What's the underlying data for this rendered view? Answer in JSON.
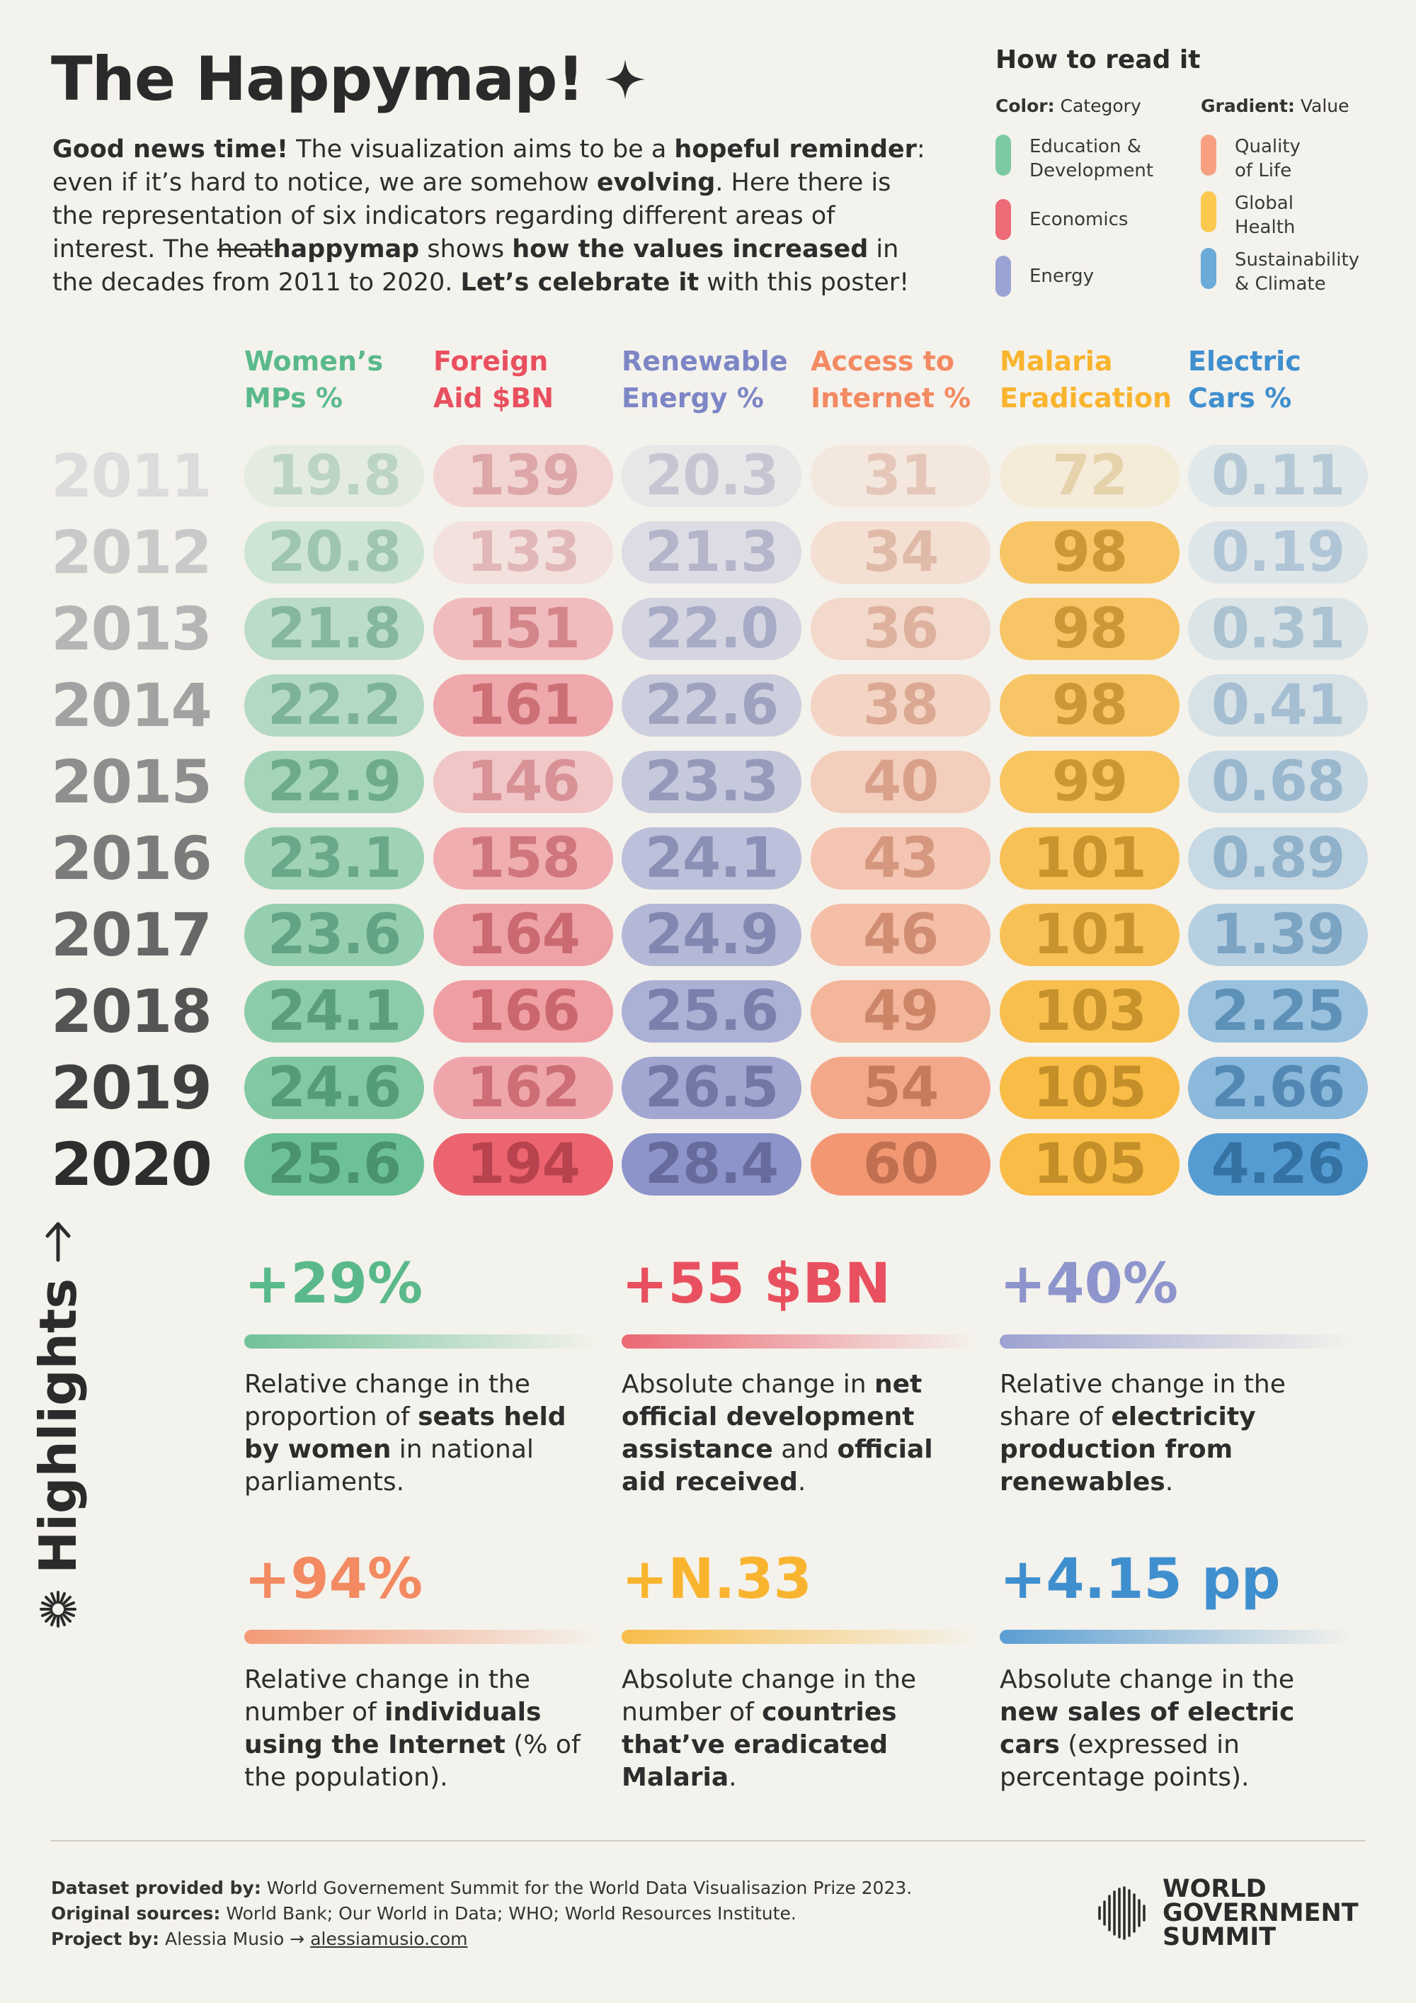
{
  "title": "The Happymap!",
  "intro": {
    "p1": "Good news time!",
    "p2": " The visualization aims to be a ",
    "p3": "hopeful reminder",
    "p4": ": even if it’s hard to notice, we are somehow ",
    "p5": "evolving",
    "p6": ". Here there is the representation of six indicators regarding different areas of interest. The ",
    "p7": "heat",
    "p8": "happymap",
    "p9": " shows ",
    "p10": "how the values increased",
    "p11": " in the decades from 2011 to 2020. ",
    "p12": "Let’s celebrate it",
    "p13": " with this poster!"
  },
  "legend": {
    "title": "How to read it",
    "color_label": "Color:",
    "color_value": " Category",
    "gradient_label": "Gradient:",
    "gradient_value": " Value",
    "categories_left": [
      {
        "label1": "Education &",
        "label2": "Development",
        "color": "#7ccaa3"
      },
      {
        "label1": "Economics",
        "label2": "",
        "color": "#ec6b77"
      },
      {
        "label1": "Energy",
        "label2": "",
        "color": "#9aa3d4"
      }
    ],
    "categories_right": [
      {
        "label1": "Quality",
        "label2": "of Life",
        "color": "#f6a081"
      },
      {
        "label1": "Global",
        "label2": "Health",
        "color": "#fbc94f"
      },
      {
        "label1": "Sustainability",
        "label2": "& Climate",
        "color": "#6aabd9"
      }
    ]
  },
  "chart_data": {
    "type": "heatmap",
    "rows": [
      "2011",
      "2012",
      "2013",
      "2014",
      "2015",
      "2016",
      "2017",
      "2018",
      "2019",
      "2020"
    ],
    "columns": [
      {
        "line1": "Women’s",
        "line2": "MPs %",
        "color": "#5ab98a",
        "values": [
          "19.8",
          "20.8",
          "21.8",
          "22.2",
          "22.9",
          "23.1",
          "23.6",
          "24.1",
          "24.6",
          "25.6"
        ]
      },
      {
        "line1": "Foreign",
        "line2": "Aid $BN",
        "color": "#e9505f",
        "values": [
          "139",
          "133",
          "151",
          "161",
          "146",
          "158",
          "164",
          "166",
          "162",
          "194"
        ]
      },
      {
        "line1": "Renewable",
        "line2": "Energy %",
        "color": "#7d86c5",
        "values": [
          "20.3",
          "21.3",
          "22.0",
          "22.6",
          "23.3",
          "24.1",
          "24.9",
          "25.6",
          "26.5",
          "28.4"
        ]
      },
      {
        "line1": "Access to",
        "line2": "Internet %",
        "color": "#f38a62",
        "values": [
          "31",
          "34",
          "36",
          "38",
          "40",
          "43",
          "46",
          "49",
          "54",
          "60"
        ]
      },
      {
        "line1": "Malaria",
        "line2": "Eradication",
        "color": "#f9b42f",
        "values": [
          "72",
          "98",
          "98",
          "98",
          "99",
          "101",
          "101",
          "103",
          "105",
          "105"
        ]
      },
      {
        "line1": "Electric",
        "line2": "Cars %",
        "color": "#3f8fcf",
        "values": [
          "0.11",
          "0.19",
          "0.31",
          "0.41",
          "0.68",
          "0.89",
          "1.39",
          "2.25",
          "2.66",
          "4.26"
        ]
      }
    ]
  },
  "highlights": {
    "side_label": "Highlights",
    "items": [
      {
        "big": "+29%",
        "color": "#5ab98a",
        "t1": "Relative change in the proportion of ",
        "b1": "seats held by women",
        "t2": " in national parliaments.",
        "b2": "",
        "t3": ""
      },
      {
        "big": "+55 $BN",
        "color": "#e9505f",
        "t1": "Absolute change in ",
        "b1": "net official development assistance",
        "t2": " and ",
        "b2": "official aid received",
        "t3": "."
      },
      {
        "big": "+40%",
        "color": "#8d95cc",
        "t1": "Relative change in the share of ",
        "b1": "electricity production from renewables",
        "t2": ".",
        "b2": "",
        "t3": ""
      },
      {
        "big": "+94%",
        "color": "#f38a62",
        "t1": "Relative change in the number of ",
        "b1": "individuals using the Internet",
        "t2": " (% of the population).",
        "b2": "",
        "t3": ""
      },
      {
        "big": "+N.33",
        "color": "#f9b42f",
        "t1": "Absolute change in the number of ",
        "b1": "countries that’ve eradicated Malaria",
        "t2": ".",
        "b2": "",
        "t3": ""
      },
      {
        "big": "+4.15 pp",
        "color": "#3f8fcf",
        "t1": "Absolute change in the ",
        "b1": "new sales of electric cars",
        "t2": " (expressed in percentage points).",
        "b2": "",
        "t3": ""
      }
    ]
  },
  "footer": {
    "l1_label": "Dataset provided by:",
    "l1_text": " World Governement Summit for the World Data Visualisazion Prize 2023.",
    "l2_label": "Original sources:",
    "l2_text": " World Bank; Our World in Data; WHO; World Resources Institute.",
    "l3_label": "Project by:",
    "l3_text": " Alessia Musio → ",
    "l3_link": "alessiamusio.com",
    "logo_l1": "WORLD",
    "logo_l2": "GOVERNMENT",
    "logo_l3": "SUMMIT"
  }
}
